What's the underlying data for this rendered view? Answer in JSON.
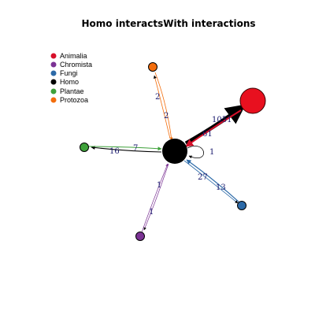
{
  "title": "Homo interactsWith interactions",
  "legend": [
    {
      "label": "Animalia",
      "color": "#d7102a"
    },
    {
      "label": "Chromista",
      "color": "#7b3294"
    },
    {
      "label": "Fungi",
      "color": "#2c6aa8"
    },
    {
      "label": "Homo",
      "color": "#000000"
    },
    {
      "label": "Plantae",
      "color": "#3ea13a"
    },
    {
      "label": "Protozoa",
      "color": "#f36d0c"
    }
  ],
  "nodes": {
    "homo": {
      "label": "Homo",
      "color": "#000000"
    },
    "animalia": {
      "label": "Animalia",
      "color": "#d7102a"
    },
    "protozoa": {
      "label": "Protozoa",
      "color": "#f36d0c"
    },
    "plantae": {
      "label": "Plantae",
      "color": "#3ea13a"
    },
    "chromista": {
      "label": "Chromista",
      "color": "#7b3294"
    },
    "fungi": {
      "label": "Fungi",
      "color": "#2c6aa8"
    }
  },
  "edge_labels": {
    "homo_to_animalia": "1051",
    "animalia_to_homo": "61",
    "homo_to_protozoa": "2",
    "protozoa_to_homo": "2",
    "homo_to_plantae": "16",
    "plantae_to_homo": "7",
    "homo_to_chromista": "1",
    "chromista_to_homo": "1",
    "homo_to_fungi": "13",
    "fungi_to_homo": "27",
    "homo_self": "1"
  }
}
